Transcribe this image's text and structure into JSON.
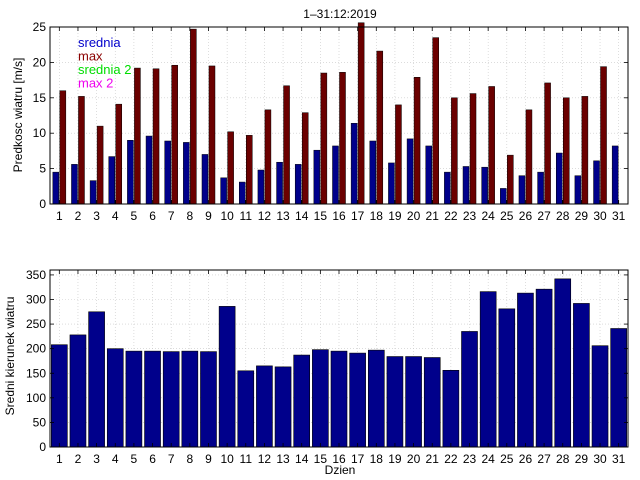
{
  "chart_data": [
    {
      "type": "bar",
      "title": "1–31:12:2019",
      "ylabel": "Predkosc wiatru [m/s]",
      "xlabel": "",
      "ylim": [
        0,
        25
      ],
      "yticks": [
        0,
        5,
        10,
        15,
        20,
        25
      ],
      "grid": true,
      "categories": [
        "1",
        "2",
        "3",
        "4",
        "5",
        "6",
        "7",
        "8",
        "9",
        "10",
        "11",
        "12",
        "13",
        "14",
        "15",
        "16",
        "17",
        "18",
        "19",
        "20",
        "21",
        "22",
        "23",
        "24",
        "25",
        "26",
        "27",
        "28",
        "29",
        "30",
        "31"
      ],
      "legend": [
        {
          "label": "srednia",
          "color": "#0000cc"
        },
        {
          "label": "max",
          "color": "#8b0000"
        },
        {
          "label": "srednia 2",
          "color": "#00dd00"
        },
        {
          "label": "max 2",
          "color": "#ee00ee"
        }
      ],
      "series": [
        {
          "name": "srednia",
          "color": "#00008b",
          "values": [
            4.5,
            5.6,
            3.3,
            6.7,
            9.0,
            9.6,
            8.9,
            8.7,
            7.0,
            3.7,
            3.1,
            4.8,
            5.9,
            5.6,
            7.6,
            8.2,
            11.4,
            8.9,
            5.8,
            9.2,
            8.2,
            4.5,
            5.3,
            5.2,
            2.2,
            4.0,
            4.5,
            7.2,
            4.0,
            6.1,
            8.2
          ]
        },
        {
          "name": "max",
          "color": "#6b0000",
          "values": [
            16.0,
            15.2,
            11.0,
            14.1,
            19.2,
            19.1,
            19.6,
            24.7,
            19.5,
            10.2,
            9.7,
            13.3,
            16.7,
            12.9,
            18.5,
            18.6,
            25.6,
            21.6,
            14.0,
            17.9,
            23.5,
            15.0,
            15.6,
            16.6,
            6.9,
            13.3,
            17.1,
            15.0,
            15.2,
            19.4,
            0
          ]
        }
      ]
    },
    {
      "type": "bar",
      "title": "",
      "ylabel": "Sredni kierunek wiatru",
      "xlabel": "Dzien",
      "ylim": [
        0,
        360
      ],
      "yticks": [
        0,
        50,
        100,
        150,
        200,
        250,
        300,
        350
      ],
      "grid": true,
      "categories": [
        "1",
        "2",
        "3",
        "4",
        "5",
        "6",
        "7",
        "8",
        "9",
        "10",
        "11",
        "12",
        "13",
        "14",
        "15",
        "16",
        "17",
        "18",
        "19",
        "20",
        "21",
        "22",
        "23",
        "24",
        "25",
        "26",
        "27",
        "28",
        "29",
        "30",
        "31"
      ],
      "series": [
        {
          "name": "kierunek",
          "color": "#00008b",
          "values": [
            208,
            228,
            275,
            200,
            195,
            195,
            194,
            195,
            194,
            286,
            155,
            165,
            163,
            187,
            198,
            195,
            191,
            197,
            184,
            184,
            182,
            156,
            235,
            316,
            281,
            313,
            321,
            342,
            292,
            206,
            241
          ]
        }
      ]
    }
  ]
}
